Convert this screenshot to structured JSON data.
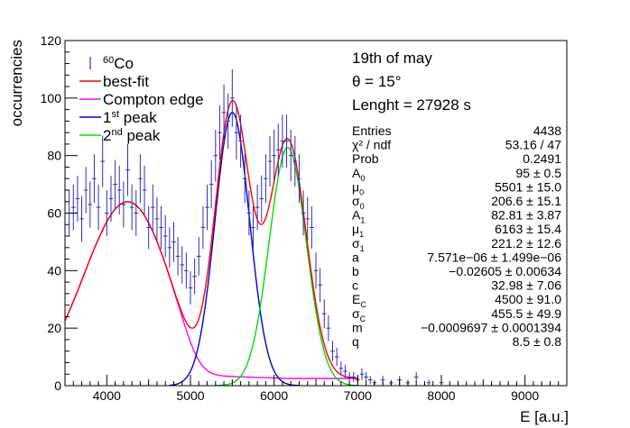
{
  "chart_data": {
    "type": "scatter",
    "xlabel": "E [a.u.]",
    "ylabel": "occurrencies",
    "xlim": [
      3500,
      9500
    ],
    "ylim": [
      0,
      120
    ],
    "x_ticks": [
      "4000",
      "5000",
      "6000",
      "7000",
      "8000",
      "9000"
    ],
    "x_tick_values": [
      4000,
      5000,
      6000,
      7000,
      8000,
      9000
    ],
    "y_ticks": [
      "0",
      "20",
      "40",
      "60",
      "80",
      "100",
      "120"
    ],
    "y_tick_values": [
      0,
      20,
      40,
      60,
      80,
      100,
      120
    ],
    "grid": false,
    "legend_position": "top-left",
    "legend": [
      {
        "base": "",
        "sup": "60",
        "suffix": "Co",
        "color": "#2e2eb0",
        "marker": "errorbar"
      },
      {
        "base": "best-fit",
        "sup": "",
        "suffix": "",
        "color": "#ff0000",
        "marker": "line"
      },
      {
        "base": "Compton edge",
        "sup": "",
        "suffix": "",
        "color": "#ff00ff",
        "marker": "line"
      },
      {
        "base": "1",
        "sup": "st",
        "suffix": " peak",
        "color": "#0000cc",
        "marker": "line"
      },
      {
        "base": "2",
        "sup": "nd",
        "suffix": " peak",
        "color": "#00dd00",
        "marker": "line"
      }
    ],
    "annotations": {
      "date": "19th of may",
      "theta": "θ = 15°",
      "lenght": "Lenght =  27928 s"
    },
    "stats": [
      {
        "name": "Entries",
        "sub": "",
        "value": "4438"
      },
      {
        "name": "χ² / ndf",
        "sub": "",
        "value": "53.16 / 47"
      },
      {
        "name": "Prob",
        "sub": "",
        "value": "0.2491"
      },
      {
        "name": "A",
        "sub": "0",
        "value": "95 ± 0.5"
      },
      {
        "name": "μ",
        "sub": "0",
        "value": "5501 ± 15.0"
      },
      {
        "name": "σ",
        "sub": "0",
        "value": "206.6 ± 15.1"
      },
      {
        "name": "A",
        "sub": "1",
        "value": "82.81 ± 3.87"
      },
      {
        "name": "μ",
        "sub": "1",
        "value": "6163 ± 15.4"
      },
      {
        "name": "σ",
        "sub": "1",
        "value": "221.2 ± 12.6"
      },
      {
        "name": "a",
        "sub": "",
        "value": "7.571e−06 ± 1.499e−06"
      },
      {
        "name": "b",
        "sub": "",
        "value": "−0.02605 ± 0.00634"
      },
      {
        "name": "c",
        "sub": "",
        "value": "32.98 ± 7.06"
      },
      {
        "name": "E",
        "sub": "C",
        "value": "4500 ± 91.0"
      },
      {
        "name": "σ",
        "sub": "C",
        "value": "455.5 ± 49.9"
      },
      {
        "name": "m",
        "sub": "",
        "value": "−0.0009697 ± 0.0001394"
      },
      {
        "name": "q",
        "sub": "",
        "value": "8.5 ± 0.8"
      }
    ],
    "bin_width": 50,
    "series": [
      {
        "name": "60Co",
        "color": "#2e2eb0",
        "x": [
          3550,
          3600,
          3650,
          3700,
          3750,
          3800,
          3850,
          3900,
          3950,
          4000,
          4050,
          4100,
          4150,
          4200,
          4250,
          4300,
          4350,
          4400,
          4450,
          4500,
          4550,
          4600,
          4650,
          4700,
          4750,
          4800,
          4850,
          4900,
          4950,
          5000,
          5050,
          5100,
          5150,
          5200,
          5250,
          5300,
          5350,
          5400,
          5450,
          5500,
          5550,
          5600,
          5650,
          5700,
          5750,
          5800,
          5850,
          5900,
          5950,
          6000,
          6050,
          6100,
          6150,
          6200,
          6250,
          6300,
          6350,
          6400,
          6450,
          6500,
          6550,
          6600,
          6650,
          6700,
          6750,
          6800,
          6850,
          6900,
          6950,
          7000,
          7050,
          7100,
          7150,
          7200,
          7300,
          7400,
          7500,
          7600,
          7700,
          7850,
          8000
        ],
        "y": [
          60,
          62,
          65,
          58,
          68,
          63,
          72,
          62,
          78,
          60,
          65,
          70,
          68,
          63,
          75,
          62,
          60,
          72,
          68,
          55,
          62,
          58,
          55,
          52,
          48,
          50,
          45,
          42,
          40,
          34,
          38,
          45,
          55,
          62,
          70,
          80,
          88,
          95,
          92,
          100,
          88,
          85,
          72,
          60,
          55,
          62,
          65,
          72,
          78,
          80,
          82,
          85,
          85,
          80,
          78,
          72,
          60,
          58,
          55,
          40,
          35,
          25,
          20,
          12,
          10,
          6,
          5,
          3,
          3,
          2,
          4,
          3,
          2,
          1,
          2,
          1,
          2,
          1,
          3,
          1,
          1
        ],
        "err": [
          8,
          8,
          8,
          8,
          8,
          8,
          8.5,
          8,
          9,
          8,
          8,
          8.5,
          8.5,
          8,
          9,
          8,
          8,
          8.5,
          8.5,
          7.5,
          8,
          7.5,
          7.5,
          7.3,
          7,
          7,
          6.7,
          6.5,
          6.3,
          5.8,
          6.2,
          6.7,
          7.4,
          7.9,
          8.4,
          9,
          9.4,
          9.7,
          9.6,
          10,
          9.4,
          9.2,
          8.5,
          7.8,
          7.4,
          7.9,
          8.1,
          8.5,
          8.8,
          9,
          9.1,
          9.2,
          9.2,
          9,
          8.8,
          8.5,
          7.8,
          7.6,
          7.4,
          6.3,
          5.9,
          5,
          4.5,
          3.5,
          3.2,
          2.4,
          2.2,
          1.7,
          1.7,
          1.4,
          2,
          1.7,
          1.4,
          1,
          1.4,
          1,
          1.4,
          1,
          1.7,
          1,
          1
        ]
      },
      {
        "name": "best-fit",
        "color": "#ff0000"
      },
      {
        "name": "Compton edge",
        "color": "#ff00ff"
      },
      {
        "name": "1st peak",
        "color": "#0000cc"
      },
      {
        "name": "2nd peak",
        "color": "#00dd00"
      }
    ]
  }
}
